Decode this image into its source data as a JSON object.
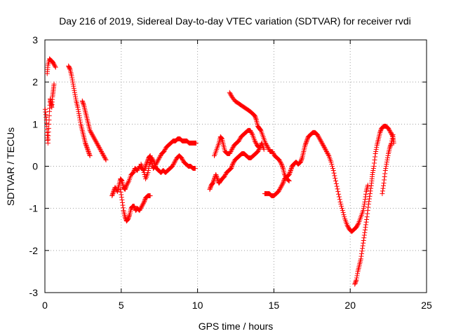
{
  "chart_data": {
    "type": "scatter",
    "title": "Day 216 of 2019, Sidereal Day-to-day VTEC variation (SDTVAR) for receiver rvdi",
    "xlabel": "GPS time / hours",
    "ylabel": "SDTVAR / TECUs",
    "xlim": [
      0,
      25
    ],
    "ylim": [
      -3,
      3
    ],
    "xticks": [
      "0",
      "5",
      "10",
      "15",
      "20",
      "25"
    ],
    "yticks": [
      "-3",
      "-2",
      "-1",
      "0",
      "1",
      "2",
      "3"
    ],
    "grid": true,
    "marker": "+",
    "color": "#ff0000",
    "series": [
      {
        "name": "seg1",
        "points": [
          [
            0.02,
            1.35
          ],
          [
            0.1,
            1.1
          ],
          [
            0.15,
            0.8
          ],
          [
            0.2,
            0.55
          ],
          [
            0.25,
            0.9
          ],
          [
            0.3,
            1.3
          ],
          [
            0.35,
            1.6
          ],
          [
            0.4,
            1.5
          ],
          [
            0.45,
            1.4
          ],
          [
            0.5,
            1.65
          ],
          [
            0.55,
            1.8
          ],
          [
            0.6,
            1.95
          ]
        ]
      },
      {
        "name": "seg2",
        "points": [
          [
            0.15,
            2.2
          ],
          [
            0.2,
            2.4
          ],
          [
            0.3,
            2.55
          ],
          [
            0.45,
            2.5
          ],
          [
            0.55,
            2.45
          ],
          [
            0.7,
            2.35
          ]
        ]
      },
      {
        "name": "seg3",
        "points": [
          [
            1.55,
            2.38
          ],
          [
            1.65,
            2.3
          ],
          [
            1.75,
            2.15
          ],
          [
            1.85,
            1.95
          ],
          [
            1.95,
            1.75
          ],
          [
            2.05,
            1.55
          ],
          [
            2.15,
            1.4
          ],
          [
            2.25,
            1.2
          ],
          [
            2.35,
            1.0
          ],
          [
            2.45,
            0.85
          ],
          [
            2.55,
            0.7
          ],
          [
            2.65,
            0.55
          ],
          [
            2.75,
            0.45
          ],
          [
            2.85,
            0.35
          ],
          [
            2.95,
            0.25
          ]
        ]
      },
      {
        "name": "seg4",
        "points": [
          [
            2.45,
            1.55
          ],
          [
            2.55,
            1.45
          ],
          [
            2.65,
            1.3
          ],
          [
            2.75,
            1.15
          ],
          [
            2.85,
            1.0
          ],
          [
            2.95,
            0.85
          ],
          [
            3.1,
            0.75
          ],
          [
            3.25,
            0.65
          ],
          [
            3.4,
            0.55
          ],
          [
            3.55,
            0.45
          ],
          [
            3.7,
            0.35
          ],
          [
            3.85,
            0.25
          ],
          [
            4.0,
            0.15
          ]
        ]
      },
      {
        "name": "seg5",
        "points": [
          [
            4.4,
            -0.7
          ],
          [
            4.5,
            -0.6
          ],
          [
            4.6,
            -0.5
          ],
          [
            4.75,
            -0.6
          ],
          [
            4.85,
            -0.45
          ],
          [
            4.95,
            -0.3
          ],
          [
            5.05,
            -0.35
          ],
          [
            5.15,
            -0.5
          ],
          [
            5.25,
            -0.55
          ],
          [
            5.35,
            -0.45
          ],
          [
            5.5,
            -0.35
          ],
          [
            5.65,
            -0.2
          ],
          [
            5.8,
            -0.15
          ],
          [
            5.9,
            -0.05
          ],
          [
            6.05,
            -0.1
          ],
          [
            6.2,
            0.0
          ],
          [
            6.35,
            -0.05
          ],
          [
            6.5,
            -0.1
          ],
          [
            6.6,
            0.0
          ],
          [
            6.7,
            0.1
          ],
          [
            6.8,
            0.2
          ],
          [
            6.9,
            0.25
          ],
          [
            7.0,
            0.1
          ],
          [
            7.1,
            -0.05
          ],
          [
            7.2,
            0.0
          ],
          [
            7.35,
            0.1
          ],
          [
            7.5,
            0.2
          ],
          [
            7.65,
            0.3
          ],
          [
            7.8,
            0.35
          ],
          [
            7.95,
            0.45
          ],
          [
            8.1,
            0.5
          ],
          [
            8.25,
            0.55
          ],
          [
            8.4,
            0.6
          ],
          [
            8.55,
            0.6
          ],
          [
            8.7,
            0.65
          ],
          [
            8.85,
            0.65
          ],
          [
            9.0,
            0.6
          ],
          [
            9.15,
            0.6
          ],
          [
            9.3,
            0.6
          ],
          [
            9.45,
            0.55
          ],
          [
            9.6,
            0.55
          ],
          [
            9.75,
            0.55
          ],
          [
            9.9,
            0.55
          ]
        ]
      },
      {
        "name": "seg6",
        "points": [
          [
            4.95,
            -0.55
          ],
          [
            5.05,
            -0.8
          ],
          [
            5.15,
            -1.05
          ],
          [
            5.25,
            -1.2
          ],
          [
            5.35,
            -1.3
          ],
          [
            5.45,
            -1.25
          ],
          [
            5.55,
            -1.15
          ],
          [
            5.65,
            -1.0
          ],
          [
            5.75,
            -0.95
          ],
          [
            5.85,
            -0.95
          ],
          [
            5.95,
            -1.05
          ],
          [
            6.05,
            -1.0
          ],
          [
            6.2,
            -1.05
          ],
          [
            6.35,
            -0.95
          ],
          [
            6.5,
            -0.85
          ],
          [
            6.6,
            -0.75
          ],
          [
            6.75,
            -0.7
          ],
          [
            6.9,
            -0.7
          ]
        ]
      },
      {
        "name": "seg7",
        "points": [
          [
            6.3,
            0.05
          ],
          [
            6.45,
            -0.1
          ],
          [
            6.6,
            -0.3
          ],
          [
            6.75,
            -0.15
          ],
          [
            6.85,
            0.05
          ],
          [
            7.0,
            0.2
          ],
          [
            7.15,
            0.1
          ],
          [
            7.3,
            -0.05
          ],
          [
            7.45,
            -0.1
          ],
          [
            7.6,
            -0.15
          ],
          [
            7.75,
            -0.1
          ],
          [
            7.9,
            -0.15
          ],
          [
            8.05,
            -0.1
          ],
          [
            8.2,
            -0.05
          ],
          [
            8.35,
            0.0
          ],
          [
            8.5,
            0.1
          ],
          [
            8.65,
            0.2
          ],
          [
            8.8,
            0.25
          ],
          [
            8.95,
            0.2
          ],
          [
            9.1,
            0.1
          ],
          [
            9.25,
            0.05
          ],
          [
            9.4,
            0.0
          ],
          [
            9.55,
            0.0
          ],
          [
            9.7,
            -0.05
          ],
          [
            9.85,
            -0.05
          ]
        ]
      },
      {
        "name": "seg8",
        "points": [
          [
            10.8,
            -0.55
          ],
          [
            10.9,
            -0.45
          ],
          [
            11.0,
            -0.4
          ],
          [
            11.1,
            -0.3
          ],
          [
            11.2,
            -0.2
          ],
          [
            11.3,
            -0.3
          ],
          [
            11.4,
            -0.4
          ],
          [
            11.5,
            -0.35
          ],
          [
            11.6,
            -0.3
          ],
          [
            11.75,
            -0.25
          ],
          [
            11.9,
            -0.15
          ],
          [
            12.05,
            -0.1
          ],
          [
            12.2,
            -0.05
          ],
          [
            12.3,
            0.05
          ],
          [
            12.45,
            0.15
          ],
          [
            12.6,
            0.2
          ],
          [
            12.75,
            0.25
          ],
          [
            12.9,
            0.3
          ],
          [
            13.05,
            0.3
          ],
          [
            13.2,
            0.25
          ],
          [
            13.35,
            0.2
          ],
          [
            13.5,
            0.2
          ],
          [
            13.65,
            0.25
          ],
          [
            13.8,
            0.3
          ],
          [
            13.95,
            0.35
          ],
          [
            14.1,
            0.45
          ],
          [
            14.2,
            0.55
          ],
          [
            14.35,
            0.4
          ]
        ]
      },
      {
        "name": "seg9",
        "points": [
          [
            11.1,
            0.25
          ],
          [
            11.25,
            0.4
          ],
          [
            11.4,
            0.55
          ],
          [
            11.5,
            0.7
          ],
          [
            11.6,
            0.65
          ],
          [
            11.7,
            0.5
          ],
          [
            11.8,
            0.35
          ],
          [
            11.95,
            0.3
          ],
          [
            12.1,
            0.3
          ],
          [
            12.25,
            0.4
          ],
          [
            12.4,
            0.5
          ],
          [
            12.55,
            0.55
          ],
          [
            12.7,
            0.6
          ],
          [
            12.85,
            0.7
          ],
          [
            13.0,
            0.75
          ],
          [
            13.15,
            0.8
          ],
          [
            13.3,
            0.85
          ],
          [
            13.45,
            0.85
          ],
          [
            13.6,
            0.75
          ],
          [
            13.75,
            0.6
          ],
          [
            13.9,
            0.5
          ],
          [
            14.0,
            0.45
          ]
        ]
      },
      {
        "name": "seg10",
        "points": [
          [
            12.1,
            1.75
          ],
          [
            12.25,
            1.65
          ],
          [
            12.45,
            1.55
          ],
          [
            12.65,
            1.5
          ],
          [
            12.85,
            1.45
          ],
          [
            13.05,
            1.4
          ],
          [
            13.25,
            1.35
          ],
          [
            13.45,
            1.3
          ],
          [
            13.6,
            1.25
          ],
          [
            13.75,
            1.2
          ],
          [
            13.85,
            1.1
          ],
          [
            13.95,
            0.95
          ],
          [
            14.05,
            0.9
          ],
          [
            14.15,
            0.85
          ],
          [
            14.3,
            0.7
          ],
          [
            14.45,
            0.55
          ],
          [
            14.6,
            0.45
          ],
          [
            14.75,
            0.35
          ],
          [
            14.9,
            0.35
          ],
          [
            15.05,
            0.25
          ],
          [
            15.2,
            0.2
          ],
          [
            15.35,
            0.15
          ],
          [
            15.5,
            0.05
          ],
          [
            15.6,
            -0.05
          ],
          [
            15.7,
            -0.2
          ],
          [
            15.85,
            -0.3
          ],
          [
            16.0,
            -0.35
          ]
        ]
      },
      {
        "name": "seg11",
        "points": [
          [
            14.4,
            -0.65
          ],
          [
            14.55,
            -0.65
          ],
          [
            14.7,
            -0.65
          ],
          [
            14.85,
            -0.7
          ],
          [
            15.0,
            -0.7
          ],
          [
            15.15,
            -0.65
          ],
          [
            15.3,
            -0.6
          ],
          [
            15.45,
            -0.5
          ],
          [
            15.6,
            -0.4
          ],
          [
            15.7,
            -0.3
          ],
          [
            15.85,
            -0.25
          ],
          [
            16.0,
            -0.2
          ],
          [
            16.1,
            -0.1
          ],
          [
            16.2,
            0.0
          ],
          [
            16.3,
            0.05
          ],
          [
            16.45,
            0.1
          ],
          [
            16.6,
            0.05
          ],
          [
            16.75,
            0.1
          ],
          [
            16.85,
            0.2
          ],
          [
            16.95,
            0.35
          ],
          [
            17.05,
            0.5
          ],
          [
            17.15,
            0.6
          ],
          [
            17.25,
            0.7
          ],
          [
            17.4,
            0.75
          ],
          [
            17.55,
            0.8
          ],
          [
            17.7,
            0.8
          ],
          [
            17.85,
            0.75
          ],
          [
            18.0,
            0.65
          ],
          [
            18.15,
            0.55
          ],
          [
            18.3,
            0.45
          ],
          [
            18.45,
            0.35
          ],
          [
            18.6,
            0.25
          ],
          [
            18.75,
            0.1
          ],
          [
            18.9,
            -0.1
          ],
          [
            19.05,
            -0.35
          ],
          [
            19.2,
            -0.6
          ],
          [
            19.35,
            -0.85
          ],
          [
            19.5,
            -1.05
          ],
          [
            19.65,
            -1.25
          ],
          [
            19.8,
            -1.4
          ],
          [
            19.95,
            -1.5
          ],
          [
            20.1,
            -1.55
          ],
          [
            20.25,
            -1.5
          ],
          [
            20.4,
            -1.45
          ],
          [
            20.55,
            -1.35
          ],
          [
            20.7,
            -1.2
          ],
          [
            20.85,
            -1.05
          ],
          [
            20.95,
            -0.85
          ],
          [
            21.05,
            -0.6
          ],
          [
            21.15,
            -0.45
          ]
        ]
      },
      {
        "name": "seg12",
        "points": [
          [
            20.3,
            -2.8
          ],
          [
            20.4,
            -2.7
          ],
          [
            20.5,
            -2.5
          ],
          [
            20.6,
            -2.35
          ],
          [
            20.7,
            -2.2
          ],
          [
            20.8,
            -1.95
          ],
          [
            20.9,
            -1.7
          ],
          [
            21.0,
            -1.45
          ],
          [
            21.1,
            -1.2
          ],
          [
            21.2,
            -0.9
          ],
          [
            21.3,
            -0.65
          ],
          [
            21.4,
            -0.4
          ],
          [
            21.45,
            -0.2
          ],
          [
            21.55,
            0.0
          ],
          [
            21.65,
            0.3
          ],
          [
            21.75,
            0.5
          ],
          [
            21.85,
            0.65
          ],
          [
            21.95,
            0.8
          ],
          [
            22.05,
            0.9
          ],
          [
            22.2,
            0.95
          ],
          [
            22.35,
            0.95
          ],
          [
            22.5,
            0.9
          ],
          [
            22.65,
            0.8
          ],
          [
            22.8,
            0.7
          ],
          [
            22.85,
            0.55
          ]
        ]
      },
      {
        "name": "seg13",
        "points": [
          [
            22.1,
            -0.65
          ],
          [
            22.2,
            -0.4
          ],
          [
            22.3,
            -0.1
          ],
          [
            22.4,
            0.1
          ],
          [
            22.5,
            0.3
          ],
          [
            22.6,
            0.45
          ],
          [
            22.7,
            0.55
          ],
          [
            22.8,
            0.75
          ]
        ]
      }
    ]
  }
}
